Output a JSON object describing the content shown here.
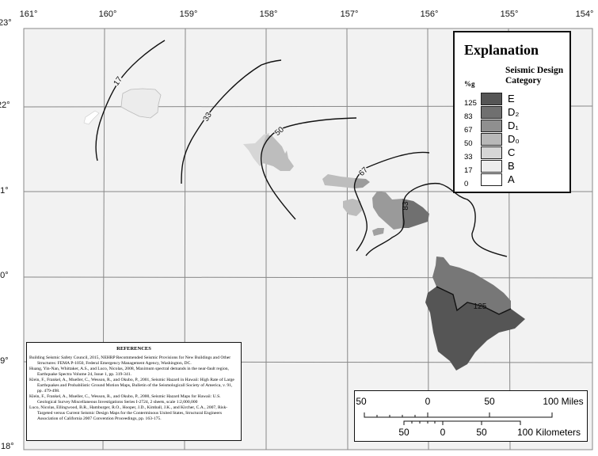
{
  "map": {
    "longitude_labels": [
      "161°",
      "160°",
      "159°",
      "158°",
      "157°",
      "156°",
      "155°",
      "154°"
    ],
    "latitude_labels": [
      "23°",
      "22°",
      "21°",
      "20°",
      "19°",
      "18°"
    ],
    "contour_labels": [
      "17",
      "33",
      "50",
      "67",
      "83",
      "125"
    ],
    "ocean_color": "#f2f2f2"
  },
  "legend": {
    "title": "Explanation",
    "category_heading": "Seismic Design Category",
    "unit": "%g",
    "classes": [
      {
        "label": "E",
        "value": "125",
        "color": "#555555"
      },
      {
        "label": "D₂",
        "value": "83",
        "color": "#707070"
      },
      {
        "label": "D₁",
        "value": "67",
        "color": "#8f8f8f"
      },
      {
        "label": "D₀",
        "value": "50",
        "color": "#b8b8b8"
      },
      {
        "label": "C",
        "value": "33",
        "color": "#d6d6d6"
      },
      {
        "label": "B",
        "value": "17",
        "color": "#ececec"
      },
      {
        "label": "A",
        "value": "0",
        "color": "#ffffff"
      }
    ]
  },
  "references": {
    "heading": "REFERENCES",
    "items": [
      "Building Seismic Safety Council, 2015, NEHRP Recommended Seismic Provisions for New Buildings and Other Structures: FEMA P-1050, Federal Emergency Management Agency, Washington, DC.",
      "Huang, Yin-Nan, Whittaker, A.S., and Luco, Nicolas, 2008, Maximum spectral demands in the near-fault region, Earthquake Spectra Volume 24, Issue 1, pp. 319-341.",
      "Klein, F., Frankel, A., Mueller, C., Wesson, R., and Okubo, P., 2001, Seismic Hazard in Hawaii: High Rate of Large Earthquakes and Probabilistic Ground Motion Maps, Bulletin of the Seismologicall Society of America, v. 91, pp. 479-498.",
      "Klein, F., Frankel, A., Mueller, C., Wesson, R., and Okubo, P., 2000, Seismic Hazard Maps for Hawaii: U.S. Geological Survey Miscellaneous Investigations Series I-2724, 2 sheets, scale 1:2,000,000",
      "Luco, Nicolas, Ellingwood, B.R., Hamburger, R.O., Hooper, J.D., Kimball, J.K., and Kircher, C.A., 2007, Risk-Targeted versus Current Seismic Design Maps for the Conterminous United States, Structural Engineers Association of California 2007 Convention Proceedings, pp. 163-175."
    ]
  },
  "scale_bar": {
    "miles_labels": [
      "50",
      "0",
      "50",
      "100 Miles"
    ],
    "km_labels": [
      "50",
      "0",
      "50",
      "100 Kilometers"
    ]
  }
}
